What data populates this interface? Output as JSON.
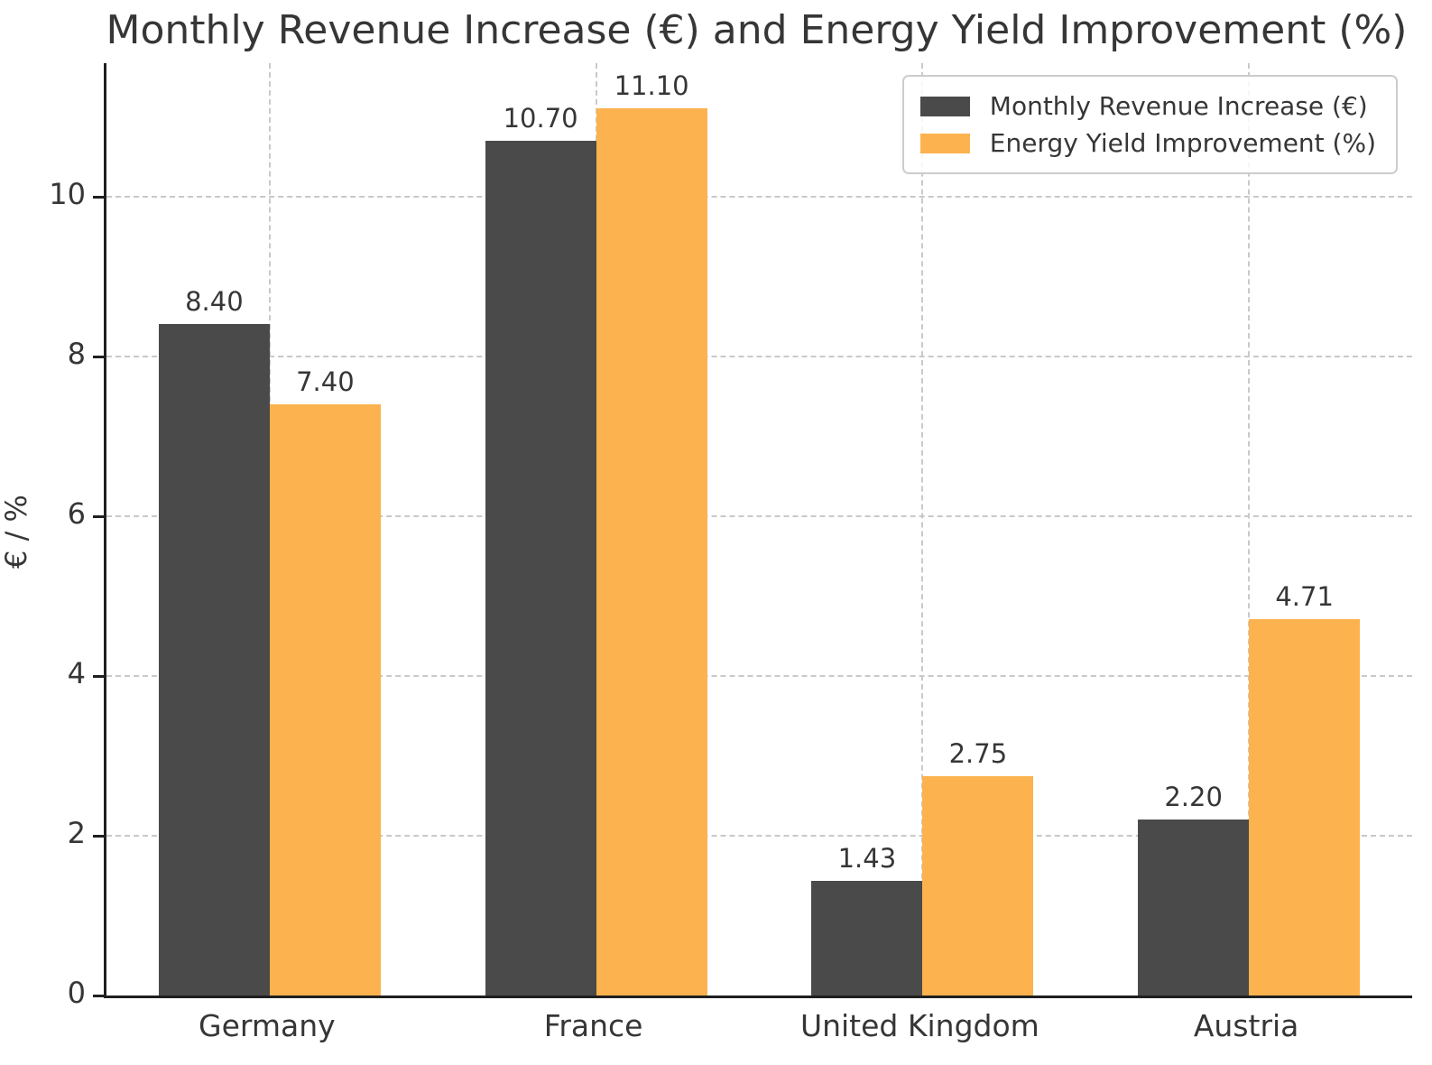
{
  "chart_data": {
    "type": "bar",
    "title": "Monthly Revenue Increase (€) and Energy Yield Improvement (%)",
    "xlabel": "",
    "ylabel": "€ / %",
    "categories": [
      "Germany",
      "France",
      "United Kingdom",
      "Austria"
    ],
    "series": [
      {
        "name": "Monthly Revenue Increase (€)",
        "color": "#4a4a4a",
        "values": [
          8.4,
          10.7,
          1.43,
          2.2
        ]
      },
      {
        "name": "Energy Yield Improvement (%)",
        "color": "#fcb24e",
        "values": [
          7.4,
          11.1,
          2.75,
          4.71
        ]
      }
    ],
    "value_labels": [
      [
        "8.40",
        "10.70",
        "1.43",
        "2.20"
      ],
      [
        "7.40",
        "11.10",
        "2.75",
        "4.71"
      ]
    ],
    "yticks": [
      0,
      2,
      4,
      6,
      8,
      10
    ],
    "ylim": [
      0,
      11.67
    ],
    "grid": true,
    "grid_style": "dashed",
    "legend_position": "upper right",
    "accent_colors": {
      "bar_dark": "#4a4a4a",
      "bar_orange": "#fcb24e",
      "axis": "#1f1f1f",
      "grid": "#c9c9c9",
      "text": "#363636"
    }
  }
}
